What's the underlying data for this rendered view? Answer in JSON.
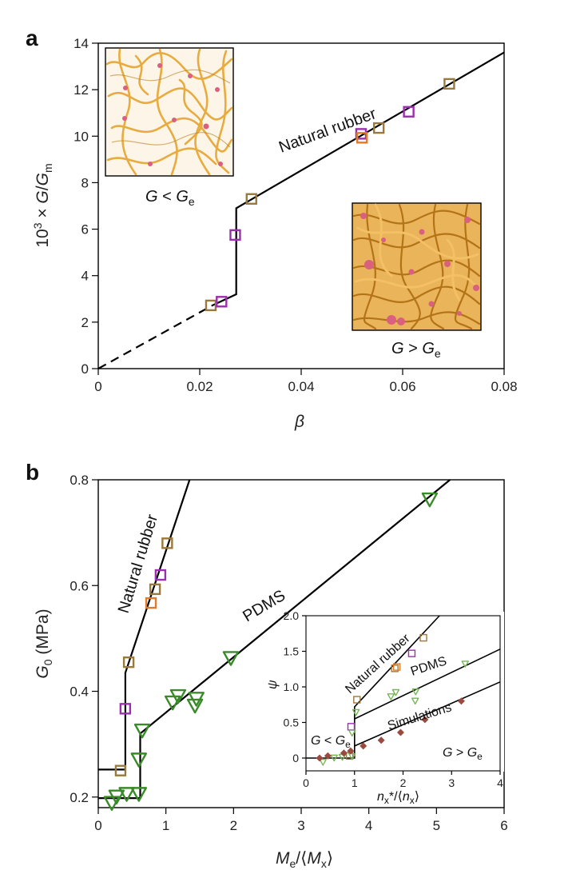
{
  "colors": {
    "olive": "#9a7a3c",
    "purple": "#9c2fb0",
    "orange": "#e07b2c",
    "green": "#3a8a2a",
    "lightgreen": "#79b55a",
    "brown": "#9b4a3f",
    "line": "#000000",
    "rubber": "#e7a838",
    "crosslink": "#d9607e"
  },
  "chart_data": [
    {
      "panel": "a",
      "type": "scatter",
      "xlabel": "β",
      "ylabel": "10³ × G/G_m",
      "xlim": [
        0,
        0.08
      ],
      "ylim": [
        0,
        14
      ],
      "xticks": [
        "0",
        "0.02",
        "0.04",
        "0.06",
        "0.08"
      ],
      "yticks": [
        "0",
        "2",
        "4",
        "6",
        "8",
        "10",
        "12",
        "14"
      ],
      "annotation": "Natural rubber",
      "inset_left_caption": "G < G_e",
      "inset_right_caption": "G > G_e",
      "lines": [
        {
          "style": "dashed",
          "x": [
            0,
            0.0225
          ],
          "y": [
            0,
            2.72
          ]
        },
        {
          "style": "solid",
          "x": [
            0.0225,
            0.0272,
            0.0272,
            0.0272,
            0.08
          ],
          "y": [
            2.72,
            3.2,
            3.2,
            6.9,
            13.6
          ]
        }
      ],
      "series": [
        {
          "name": "olive",
          "marker": "square",
          "points": [
            [
              0.0222,
              2.72
            ],
            [
              0.0302,
              7.3
            ],
            [
              0.0553,
              10.35
            ],
            [
              0.0692,
              12.25
            ]
          ]
        },
        {
          "name": "purple",
          "marker": "square",
          "points": [
            [
              0.0243,
              2.88
            ],
            [
              0.027,
              5.75
            ],
            [
              0.0518,
              10.1
            ],
            [
              0.0612,
              11.05
            ]
          ]
        },
        {
          "name": "orange",
          "marker": "square",
          "points": [
            [
              0.052,
              9.93
            ]
          ]
        }
      ]
    },
    {
      "panel": "b",
      "type": "scatter",
      "xlabel": "M_e/⟨M_x⟩",
      "ylabel": "G_0 (MPa)",
      "xlim": [
        0,
        6
      ],
      "ylim": [
        0.18,
        0.8
      ],
      "xticks": [
        "0",
        "1",
        "2",
        "3",
        "4",
        "5",
        "6"
      ],
      "yticks": [
        "0.2",
        "0.4",
        "0.6",
        "0.8"
      ],
      "annotations": [
        "Natural rubber",
        "PDMS"
      ],
      "lines": [
        {
          "name": "nr",
          "x": [
            0,
            0.4,
            0.4,
            1.35
          ],
          "y": [
            0.252,
            0.252,
            0.435,
            0.8
          ]
        },
        {
          "name": "pdms",
          "x": [
            0,
            0.62,
            0.62,
            5.2
          ],
          "y": [
            0.198,
            0.198,
            0.32,
            0.8
          ]
        }
      ],
      "series": [
        {
          "name": "nr-olive",
          "marker": "square",
          "points": [
            [
              0.33,
              0.25
            ],
            [
              0.45,
              0.455
            ],
            [
              0.84,
              0.593
            ],
            [
              1.02,
              0.68
            ]
          ]
        },
        {
          "name": "nr-purple",
          "marker": "square",
          "points": [
            [
              0.4,
              0.367
            ],
            [
              0.92,
              0.62
            ]
          ]
        },
        {
          "name": "nr-orange",
          "marker": "square",
          "points": [
            [
              0.78,
              0.567
            ]
          ]
        },
        {
          "name": "pdms-green",
          "marker": "triangle-down",
          "points": [
            [
              0.2,
              0.188
            ],
            [
              0.27,
              0.2
            ],
            [
              0.42,
              0.205
            ],
            [
              0.6,
              0.205
            ],
            [
              0.6,
              0.27
            ],
            [
              0.65,
              0.325
            ],
            [
              1.1,
              0.378
            ],
            [
              1.18,
              0.39
            ],
            [
              1.43,
              0.372
            ],
            [
              1.45,
              0.385
            ],
            [
              1.96,
              0.462
            ],
            [
              4.9,
              0.762
            ]
          ]
        }
      ],
      "inset": {
        "type": "scatter",
        "xlabel": "n_x*/⟨n_x⟩",
        "ylabel": "ψ",
        "xlim": [
          0,
          4
        ],
        "ylim": [
          -0.18,
          2.0
        ],
        "xticks": [
          "0",
          "1",
          "2",
          "3",
          "4"
        ],
        "yticks": [
          "0",
          "0.5",
          "1.0",
          "1.5",
          "2.0"
        ],
        "annotations": [
          "Natural rubber",
          "PDMS",
          "Simulations"
        ],
        "label_left": "G < G_e",
        "label_right": "G > G_e",
        "lines": [
          {
            "x": [
              0,
              1,
              1,
              2.75
            ],
            "y": [
              0,
              0,
              0.72,
              2.0
            ]
          },
          {
            "x": [
              1,
              4
            ],
            "y": [
              0.55,
              1.53
            ]
          },
          {
            "x": [
              1,
              4
            ],
            "y": [
              0.17,
              1.07
            ]
          }
        ],
        "series": [
          {
            "name": "olive",
            "marker": "square",
            "points": [
              [
                0.9,
                0.03
              ],
              [
                1.05,
                0.82
              ],
              [
                1.83,
                1.26
              ],
              [
                2.42,
                1.69
              ]
            ]
          },
          {
            "name": "purple",
            "marker": "square",
            "points": [
              [
                0.93,
                0.44
              ],
              [
                2.18,
                1.47
              ]
            ]
          },
          {
            "name": "orange",
            "marker": "square",
            "points": [
              [
                1.87,
                1.28
              ]
            ]
          },
          {
            "name": "green",
            "marker": "triangle-down",
            "points": [
              [
                0.35,
                -0.06
              ],
              [
                0.58,
                0.0
              ],
              [
                0.75,
                0.01
              ],
              [
                0.95,
                0.02
              ],
              [
                0.95,
                0.35
              ],
              [
                1.03,
                0.64
              ],
              [
                1.75,
                0.86
              ],
              [
                1.85,
                0.92
              ],
              [
                2.25,
                0.8
              ],
              [
                2.26,
                0.93
              ],
              [
                3.28,
                1.32
              ]
            ]
          },
          {
            "name": "simulations",
            "marker": "diamond",
            "points": [
              [
                0.28,
                0.0
              ],
              [
                0.45,
                0.03
              ],
              [
                0.78,
                0.07
              ],
              [
                0.92,
                0.1
              ],
              [
                1.18,
                0.17
              ],
              [
                1.55,
                0.25
              ],
              [
                1.95,
                0.36
              ],
              [
                2.45,
                0.54
              ],
              [
                3.2,
                0.8
              ]
            ]
          }
        ]
      }
    }
  ]
}
